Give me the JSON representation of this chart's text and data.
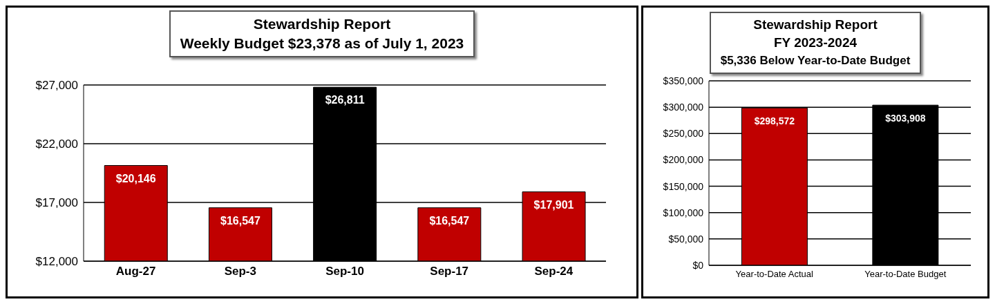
{
  "chart_data": [
    {
      "type": "bar",
      "title": "Stewardship Report",
      "subtitle": "Weekly Budget $23,378 as of July 1, 2023",
      "categories": [
        "Aug-27",
        "Sep-3",
        "Sep-10",
        "Sep-17",
        "Sep-24"
      ],
      "values": [
        20146,
        16547,
        26811,
        16547,
        17901
      ],
      "colors": [
        "#c00000",
        "#c00000",
        "#000000",
        "#c00000",
        "#c00000"
      ],
      "value_labels": [
        "$20,146",
        "$16,547",
        "$26,811",
        "$16,547",
        "$17,901"
      ],
      "ylim": [
        12000,
        27000
      ],
      "yticks": [
        {
          "value": 12000,
          "label": "$12,000"
        },
        {
          "value": 17000,
          "label": "$17,000"
        },
        {
          "value": 22000,
          "label": "$22,000"
        },
        {
          "value": 27000,
          "label": "$27,000"
        }
      ],
      "grid": "y"
    },
    {
      "type": "bar",
      "title": "Stewardship Report",
      "subtitle": "FY 2023-2024",
      "annotations": [
        "$5,336 Below Year-to-Date Budget"
      ],
      "categories": [
        "Year-to-Date Actual",
        "Year-to-Date Budget"
      ],
      "values": [
        298572,
        303908
      ],
      "colors": [
        "#c00000",
        "#000000"
      ],
      "value_labels": [
        "$298,572",
        "$303,908"
      ],
      "ylim": [
        0,
        350000
      ],
      "yticks": [
        {
          "value": 0,
          "label": "$0"
        },
        {
          "value": 50000,
          "label": "$50,000"
        },
        {
          "value": 100000,
          "label": "$100,000"
        },
        {
          "value": 150000,
          "label": "$150,000"
        },
        {
          "value": 200000,
          "label": "$200,000"
        },
        {
          "value": 250000,
          "label": "$250,000"
        },
        {
          "value": 300000,
          "label": "$300,000"
        },
        {
          "value": 350000,
          "label": "$350,000"
        }
      ],
      "grid": "y"
    }
  ]
}
